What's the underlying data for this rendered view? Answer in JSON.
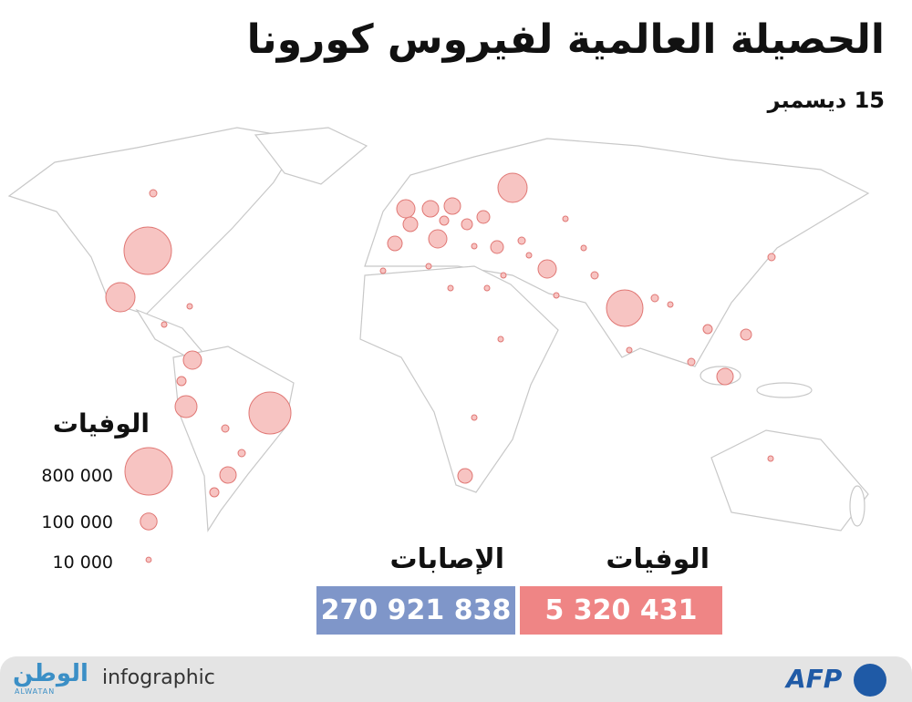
{
  "header": {
    "title": "الحصيلة العالمية لفيروس كورونا",
    "date": "15 ديسمبر"
  },
  "legend": {
    "title": "الوفيات",
    "entries": [
      {
        "value": 800000,
        "label": "800 000"
      },
      {
        "value": 100000,
        "label": "100 000"
      },
      {
        "value": 10000,
        "label": "10 000"
      }
    ]
  },
  "stats": {
    "deaths": {
      "label": "الوفيات",
      "value": "5 320 431"
    },
    "cases": {
      "label": "الإصابات",
      "value": "270 921 838"
    }
  },
  "footer": {
    "logo": "الوطن",
    "logo_sub": "ALWATAN",
    "tag": "infographic",
    "agency": "AFP"
  }
}
